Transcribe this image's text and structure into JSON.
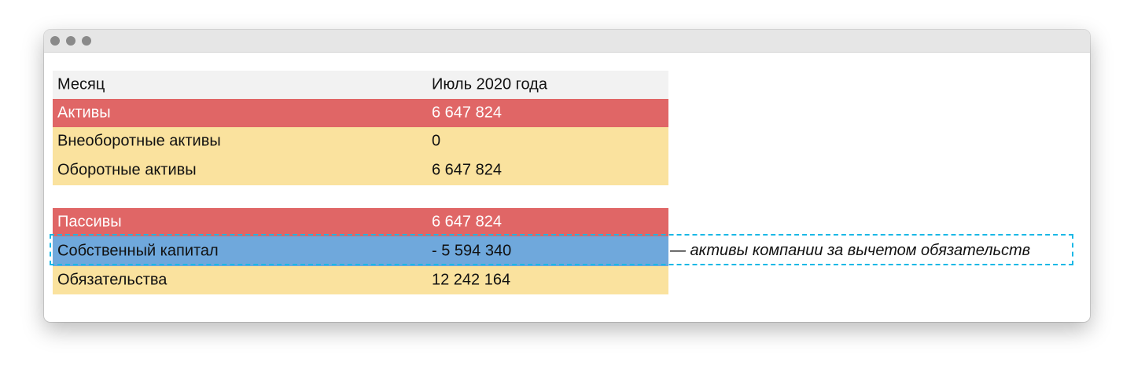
{
  "table": {
    "header": {
      "label": "Месяц",
      "value": "Июль 2020 года"
    },
    "assets": {
      "label": "Активы",
      "value": "6 647 824"
    },
    "non_current_assets": {
      "label": "Внеоборотные активы",
      "value": "0"
    },
    "current_assets": {
      "label": "Оборотные активы",
      "value": "6 647 824"
    },
    "liabilities_total": {
      "label": "Пассивы",
      "value": "6 647 824"
    },
    "equity": {
      "label": "Собственный капитал",
      "value": "- 5 594 340"
    },
    "obligations": {
      "label": "Обязательства",
      "value": "12 242 164"
    }
  },
  "annotation": {
    "text": "— активы компании за вычетом обязательств"
  },
  "colors": {
    "header_bg": "#f2f2f2",
    "red_row": "#e06666",
    "yellow_row": "#fae29e",
    "blue_row": "#6fa8dc",
    "highlight_border": "#1ab8e6"
  }
}
